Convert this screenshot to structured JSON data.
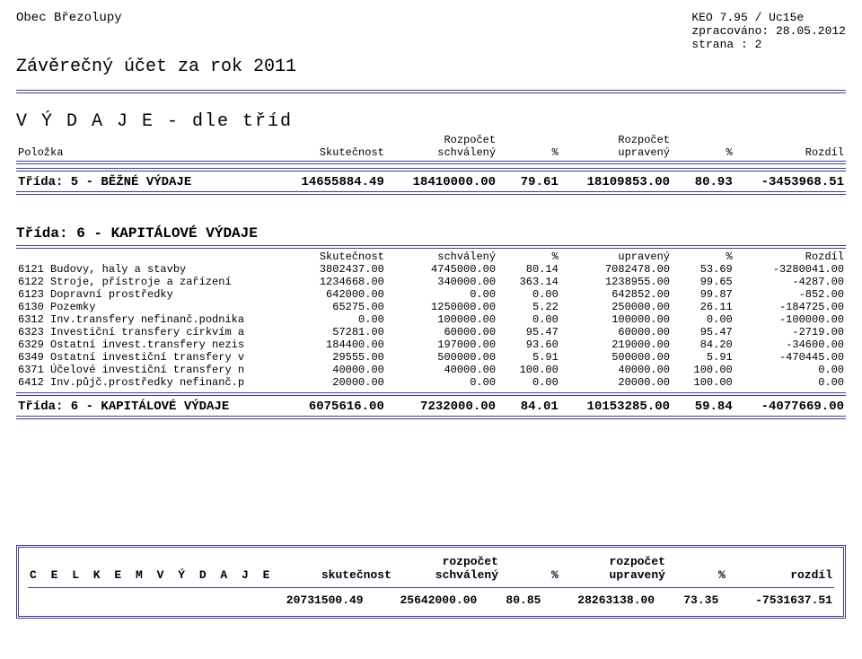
{
  "header": {
    "municipality": "Obec Březolupy",
    "system": "KEO 7.95  / Uc15e",
    "processed": "zpracováno: 28.05.2012",
    "page": "strana  :       2",
    "title": "Závěrečný účet za rok 2011"
  },
  "section": {
    "heading": "V Ý D A J E   - dle tříd",
    "col_item": "Položka",
    "col_sk": "Skutečnost",
    "col_sch_top": "Rozpočet",
    "col_sch": "schválený",
    "col_p1": "%",
    "col_up_top": "Rozpočet",
    "col_up": "upravený",
    "col_p2": "%",
    "col_roz": "Rozdíl"
  },
  "class5": {
    "title": "Třída: 5 - BĚŽNÉ VÝDAJE",
    "sk": "14655884.49",
    "sch": "18410000.00",
    "p1": "79.61",
    "up": "18109853.00",
    "p2": "80.93",
    "roz": "-3453968.51"
  },
  "class6": {
    "title": "Třída: 6 - KAPITÁLOVÉ VÝDAJE",
    "head_sk": "Skutečnost",
    "head_sch": "schválený",
    "head_p1": "%",
    "head_up": "upravený",
    "head_p2": "%",
    "head_roz": "Rozdíl",
    "rows": [
      {
        "item": "6121 Budovy, haly a stavby",
        "sk": "3802437.00",
        "sch": "4745000.00",
        "p1": "80.14",
        "up": "7082478.00",
        "p2": "53.69",
        "roz": "-3280041.00"
      },
      {
        "item": "6122 Stroje, přístroje a zařízení",
        "sk": "1234668.00",
        "sch": "340000.00",
        "p1": "363.14",
        "up": "1238955.00",
        "p2": "99.65",
        "roz": "-4287.00"
      },
      {
        "item": "6123 Dopravní prostředky",
        "sk": "642000.00",
        "sch": "0.00",
        "p1": "0.00",
        "up": "642852.00",
        "p2": "99.87",
        "roz": "-852.00"
      },
      {
        "item": "6130 Pozemky",
        "sk": "65275.00",
        "sch": "1250000.00",
        "p1": "5.22",
        "up": "250000.00",
        "p2": "26.11",
        "roz": "-184725.00"
      },
      {
        "item": "6312 Inv.transfery nefinanč.podnika",
        "sk": "0.00",
        "sch": "100000.00",
        "p1": "0.00",
        "up": "100000.00",
        "p2": "0.00",
        "roz": "-100000.00"
      },
      {
        "item": "6323 Investiční transfery církvím a",
        "sk": "57281.00",
        "sch": "60000.00",
        "p1": "95.47",
        "up": "60000.00",
        "p2": "95.47",
        "roz": "-2719.00"
      },
      {
        "item": "6329 Ostatní invest.transfery nezis",
        "sk": "184400.00",
        "sch": "197000.00",
        "p1": "93.60",
        "up": "219000.00",
        "p2": "84.20",
        "roz": "-34600.00"
      },
      {
        "item": "6349 Ostatní investiční transfery v",
        "sk": "29555.00",
        "sch": "500000.00",
        "p1": "5.91",
        "up": "500000.00",
        "p2": "5.91",
        "roz": "-470445.00"
      },
      {
        "item": "6371 Účelové investiční transfery n",
        "sk": "40000.00",
        "sch": "40000.00",
        "p1": "100.00",
        "up": "40000.00",
        "p2": "100.00",
        "roz": "0.00"
      },
      {
        "item": "6412 Inv.půjč.prostředky nefinanč.p",
        "sk": "20000.00",
        "sch": "0.00",
        "p1": "0.00",
        "up": "20000.00",
        "p2": "100.00",
        "roz": "0.00"
      }
    ],
    "total": {
      "title": "Třída: 6 - KAPITÁLOVÉ VÝDAJE",
      "sk": "6075616.00",
      "sch": "7232000.00",
      "p1": "84.01",
      "up": "10153285.00",
      "p2": "59.84",
      "roz": "-4077669.00"
    }
  },
  "summary": {
    "label": "C E L K E M    V Ý D A J E",
    "col_sk": "skutečnost",
    "col_sch_top": "rozpočet",
    "col_sch": "schválený",
    "col_p1": "%",
    "col_up_top": "rozpočet",
    "col_up": "upravený",
    "col_p2": "%",
    "col_roz": "rozdíl",
    "sk": "20731500.49",
    "sch": "25642000.00",
    "p1": "80.85",
    "up": "28263138.00",
    "p2": "73.35",
    "roz": "-7531637.51"
  },
  "style": {
    "rule_color": "#3b3bb0"
  }
}
